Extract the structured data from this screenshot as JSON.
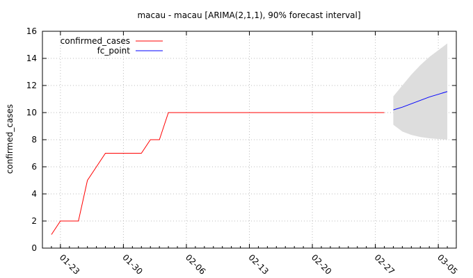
{
  "chart_data": {
    "type": "line",
    "title": "macau - macau [ARIMA(2,1,1), 90% forecast interval]",
    "xlabel": "",
    "ylabel": "confirmed_cases",
    "x_axis_type": "date",
    "x_ticks": [
      "01-23",
      "01-30",
      "02-06",
      "02-13",
      "02-20",
      "02-27",
      "03-05"
    ],
    "xlim": [
      "2020-01-21",
      "2020-03-07"
    ],
    "ylim": [
      0,
      16
    ],
    "y_ticks": [
      0,
      2,
      4,
      6,
      8,
      10,
      12,
      14,
      16
    ],
    "grid": true,
    "legend_position": "top-left",
    "series": [
      {
        "name": "confirmed_cases",
        "color": "#ff0000",
        "points": [
          [
            "2020-01-22",
            1
          ],
          [
            "2020-01-23",
            2
          ],
          [
            "2020-01-24",
            2
          ],
          [
            "2020-01-25",
            2
          ],
          [
            "2020-01-26",
            5
          ],
          [
            "2020-01-27",
            6
          ],
          [
            "2020-01-28",
            7
          ],
          [
            "2020-01-29",
            7
          ],
          [
            "2020-01-30",
            7
          ],
          [
            "2020-01-31",
            7
          ],
          [
            "2020-02-01",
            7
          ],
          [
            "2020-02-02",
            8
          ],
          [
            "2020-02-03",
            8
          ],
          [
            "2020-02-04",
            10
          ],
          [
            "2020-02-28",
            10
          ]
        ]
      },
      {
        "name": "fc_point",
        "color": "#0000ff",
        "points": [
          [
            "2020-02-29",
            10.2
          ],
          [
            "2020-03-01",
            10.4
          ],
          [
            "2020-03-02",
            10.65
          ],
          [
            "2020-03-03",
            10.9
          ],
          [
            "2020-03-04",
            11.15
          ],
          [
            "2020-03-05",
            11.35
          ],
          [
            "2020-03-06",
            11.55
          ]
        ]
      }
    ],
    "forecast_interval": {
      "color": "#dddddd",
      "x": [
        "2020-02-29",
        "2020-03-01",
        "2020-03-02",
        "2020-03-03",
        "2020-03-04",
        "2020-03-05",
        "2020-03-06"
      ],
      "lower": [
        9.1,
        8.6,
        8.35,
        8.2,
        8.1,
        8.05,
        8.0
      ],
      "upper": [
        11.2,
        12.0,
        12.8,
        13.5,
        14.1,
        14.6,
        15.1
      ]
    }
  }
}
